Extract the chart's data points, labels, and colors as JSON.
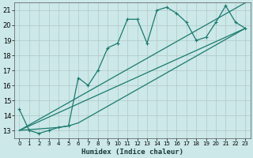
{
  "bg_color": "#cce8e8",
  "grid_color": "#b0c8c8",
  "line_color": "#1a7a6e",
  "xlabel": "Humidex (Indice chaleur)",
  "xlim": [
    -0.5,
    23.5
  ],
  "ylim": [
    12.5,
    21.5
  ],
  "xticks": [
    0,
    1,
    2,
    3,
    4,
    5,
    6,
    7,
    8,
    9,
    10,
    11,
    12,
    13,
    14,
    15,
    16,
    17,
    18,
    19,
    20,
    21,
    22,
    23
  ],
  "yticks": [
    13,
    14,
    15,
    16,
    17,
    18,
    19,
    20,
    21
  ],
  "series1_x": [
    0,
    1,
    2,
    3,
    4,
    5,
    6,
    7,
    8,
    9,
    10,
    11,
    12,
    13,
    14,
    15,
    16,
    17,
    18,
    19,
    20,
    21,
    22,
    23
  ],
  "series1_y": [
    14.4,
    13.0,
    12.8,
    13.0,
    13.2,
    13.3,
    16.5,
    16.0,
    17.0,
    18.5,
    18.8,
    20.4,
    20.4,
    18.8,
    21.0,
    21.2,
    20.8,
    20.2,
    19.0,
    19.2,
    20.2,
    21.3,
    20.2,
    19.8
  ],
  "line2_x": [
    0,
    23
  ],
  "line2_y": [
    13.0,
    19.8
  ],
  "line3_x": [
    0,
    23
  ],
  "line3_y": [
    13.0,
    21.5
  ],
  "line4_x": [
    0,
    4,
    5,
    6,
    23
  ],
  "line4_y": [
    13.0,
    13.2,
    13.3,
    13.5,
    19.8
  ]
}
